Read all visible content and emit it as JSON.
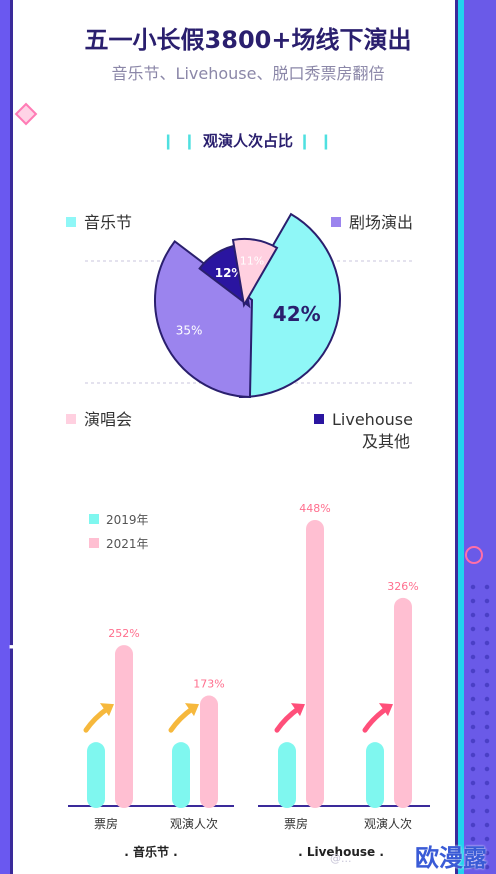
{
  "header": {
    "title": "五一小长假3800+场线下演出",
    "subtitle": "音乐节、Livehouse、脱口秀票房翻倍"
  },
  "pie_heading": "观演人次占比",
  "pie_legend": {
    "music": "音乐节",
    "theatre": "剧场演出",
    "concert": "演唱会",
    "livehouse_line1": "Livehouse",
    "livehouse_line2": "及其他"
  },
  "bar_legend": {
    "y2019": "2019年",
    "y2021": "2021年"
  },
  "groups": {
    "music": ". 音乐节 .",
    "livehouse": ". Livehouse ."
  },
  "watermark": "@...",
  "brand": "欧漫露",
  "chart_data": [
    {
      "type": "pie",
      "title": "观演人次占比",
      "slices": [
        {
          "label": "音乐节",
          "value": 42,
          "display": "42%",
          "color": "#8ff7f7"
        },
        {
          "label": "剧场演出",
          "value": 35,
          "display": "35%",
          "color": "#9b84ee"
        },
        {
          "label": "Livehouse 及其他",
          "value": 12,
          "display": "12%",
          "color": "#2a15a0"
        },
        {
          "label": "演唱会",
          "value": 11,
          "display": "11%",
          "color": "#ffd0e0"
        }
      ]
    },
    {
      "type": "bar",
      "series": [
        {
          "name": "2019年",
          "color": "#7ff7ef"
        },
        {
          "name": "2021年",
          "color": "#ffbfd2"
        }
      ],
      "groups": [
        {
          "name": "音乐节",
          "bars": [
            {
              "category": "票房",
              "v2019": 100,
              "v2021": 252,
              "label": "252%"
            },
            {
              "category": "观演人次",
              "v2019": 100,
              "v2021": 173,
              "label": "173%"
            }
          ]
        },
        {
          "name": "Livehouse",
          "bars": [
            {
              "category": "票房",
              "v2019": 100,
              "v2021": 448,
              "label": "448%"
            },
            {
              "category": "观演人次",
              "v2019": 100,
              "v2021": 326,
              "label": "326%"
            }
          ]
        }
      ]
    }
  ]
}
